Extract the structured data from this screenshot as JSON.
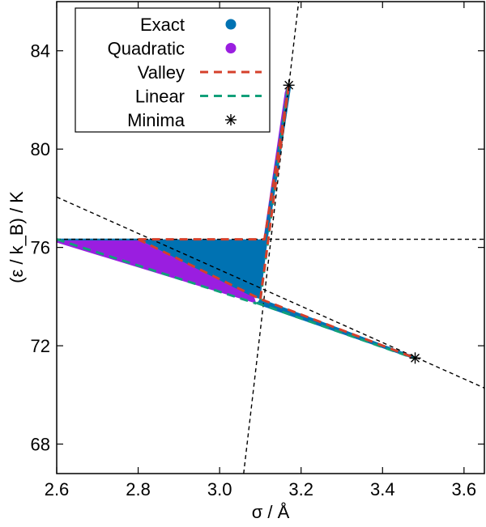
{
  "chart_data": {
    "type": "area",
    "xlabel": "σ / Å",
    "ylabel": "(ε / k_B) / K",
    "xlim": [
      2.6,
      3.65
    ],
    "ylim": [
      66.8,
      86.0
    ],
    "xticks": [
      "2.6",
      "2.8",
      "3.0",
      "3.2",
      "3.4",
      "3.6"
    ],
    "yticks": [
      "68",
      "72",
      "76",
      "80",
      "84"
    ],
    "grid": false,
    "legend_placement": "top-left",
    "legend": [
      "Exact",
      "Quadratic",
      "Valley",
      "Linear",
      "Minima"
    ],
    "colors": {
      "exact": "#0072b2",
      "quadratic": "#9a1ee0",
      "valley": "#d5402b",
      "linear": "#12a07a",
      "guide": "#000000"
    },
    "exact_regions": [
      [
        [
          2.8,
          76.33
        ],
        [
          3.108,
          76.33
        ],
        [
          3.166,
          82.6
        ],
        [
          3.176,
          82.6
        ],
        [
          3.118,
          76.33
        ],
        [
          3.1,
          73.9
        ],
        [
          3.08,
          74.0
        ]
      ],
      [
        [
          3.1,
          73.92
        ],
        [
          3.48,
          71.56
        ],
        [
          3.48,
          71.44
        ],
        [
          3.09,
          73.7
        ]
      ],
      [
        [
          2.6,
          76.36
        ],
        [
          2.8,
          76.36
        ],
        [
          2.8,
          76.28
        ],
        [
          2.6,
          76.28
        ]
      ]
    ],
    "quadratic_regions": [
      [
        [
          2.6,
          76.33
        ],
        [
          2.8,
          76.33
        ],
        [
          3.085,
          73.98
        ],
        [
          3.09,
          73.72
        ],
        [
          2.6,
          76.2
        ]
      ],
      [
        [
          3.16,
          82.3
        ],
        [
          3.166,
          82.6
        ],
        [
          3.112,
          76.5
        ],
        [
          3.108,
          76.4
        ]
      ]
    ],
    "valley_lines": [
      [
        [
          2.8,
          76.33
        ],
        [
          3.11,
          76.33
        ],
        [
          3.17,
          82.6
        ]
      ],
      [
        [
          2.8,
          76.33
        ],
        [
          3.1,
          73.9
        ],
        [
          3.48,
          71.5
        ]
      ],
      [
        [
          3.1,
          73.9
        ],
        [
          3.17,
          82.6
        ]
      ]
    ],
    "linear_lines": [
      [
        [
          2.6,
          76.33
        ],
        [
          3.09,
          73.72
        ]
      ],
      [
        [
          3.09,
          73.75
        ],
        [
          3.48,
          71.48
        ]
      ],
      [
        [
          3.1,
          73.85
        ],
        [
          3.168,
          82.6
        ]
      ]
    ],
    "guide_lines": [
      [
        [
          2.6,
          76.33
        ],
        [
          3.65,
          76.33
        ]
      ],
      [
        [
          2.6,
          78.05
        ],
        [
          3.65,
          70.28
        ]
      ],
      [
        [
          3.059,
          66.8
        ],
        [
          3.194,
          86.0
        ]
      ]
    ],
    "minima": [
      [
        3.17,
        82.6
      ],
      [
        3.48,
        71.5
      ]
    ]
  }
}
